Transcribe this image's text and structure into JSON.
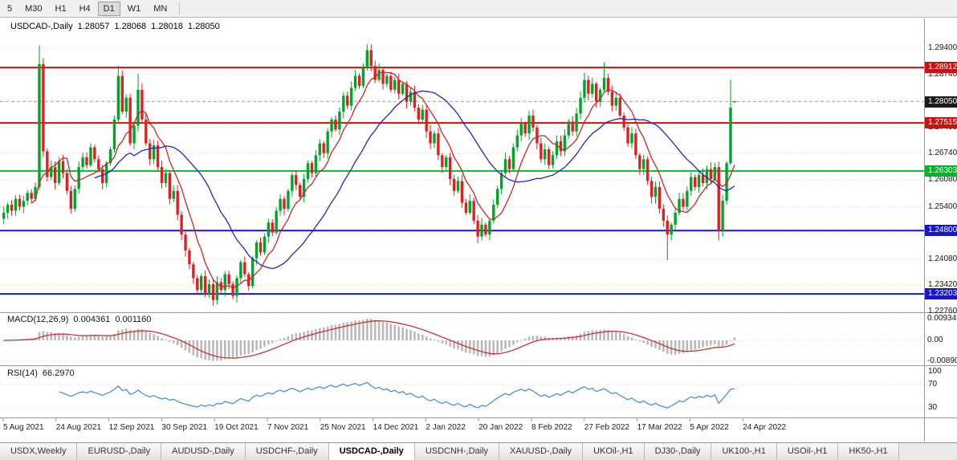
{
  "toolbar": {
    "timeframes": [
      "5",
      "M30",
      "H1",
      "H4",
      "D1",
      "W1",
      "MN"
    ],
    "active_timeframe": "D1"
  },
  "chart_header": {
    "symbol_label": "USDCAD-,Daily",
    "open": "1.28057",
    "high": "1.28068",
    "low": "1.28018",
    "close": "1.28050"
  },
  "price_axis": {
    "labels": [
      {
        "text": "1.29400",
        "price": 1.294
      },
      {
        "text": "1.28740",
        "price": 1.2874
      },
      {
        "text": "1.27400",
        "price": 1.274
      },
      {
        "text": "1.26740",
        "price": 1.2674
      },
      {
        "text": "1.26080",
        "price": 1.2608
      },
      {
        "text": "1.25400",
        "price": 1.254
      },
      {
        "text": "1.24080",
        "price": 1.2408
      },
      {
        "text": "1.23420",
        "price": 1.2342
      },
      {
        "text": "1.22760",
        "price": 1.2276
      }
    ],
    "badges": [
      {
        "text": "1.28912",
        "price": 1.28912,
        "bg": "#cc1111",
        "type": "line-label"
      },
      {
        "text": "1.28050",
        "price": 1.2805,
        "bg": "#1a1a1a",
        "type": "bid"
      },
      {
        "text": "1.27515",
        "price": 1.27515,
        "bg": "#cc1111",
        "type": "line-label"
      },
      {
        "text": "1.26303",
        "price": 1.26303,
        "bg": "#00b42a",
        "type": "line-label"
      },
      {
        "text": "1.24800",
        "price": 1.248,
        "bg": "#1717c8",
        "type": "line-label"
      },
      {
        "text": "1.23203",
        "price": 1.23203,
        "bg": "#1717c8",
        "type": "line-label"
      }
    ]
  },
  "hlines": [
    {
      "price": 1.28912,
      "color": "#cc1111",
      "width": 2
    },
    {
      "price": 1.27515,
      "color": "#cc1111",
      "width": 2
    },
    {
      "price": 1.26303,
      "color": "#00c832",
      "width": 2
    },
    {
      "price": 1.248,
      "color": "#1717c8",
      "width": 2
    },
    {
      "price": 1.23203,
      "color": "#1717c8",
      "width": 2
    }
  ],
  "bid_line": {
    "price": 1.2805,
    "color": "#a8a8a8"
  },
  "grid_prices": [
    1.294,
    1.2874,
    1.2808,
    1.274,
    1.2674,
    1.2608,
    1.254,
    1.2474,
    1.2408,
    1.2342,
    1.2276
  ],
  "indicators": {
    "macd": {
      "name": "MACD(12,26,9)",
      "value_main": "0.004361",
      "value_signal": "0.001160",
      "axis_labels": [
        {
          "text": "0.009345",
          "value": 0.009345
        },
        {
          "text": "0.00",
          "value": 0
        },
        {
          "text": "-0.008905",
          "value": -0.008905
        }
      ]
    },
    "rsi": {
      "name": "RSI(14)",
      "value": "66.2970",
      "axis_labels": [
        {
          "text": "100",
          "value": 100
        },
        {
          "text": "70",
          "value": 70
        },
        {
          "text": "30",
          "value": 30
        }
      ],
      "levels": [
        70,
        30
      ]
    }
  },
  "date_axis": [
    "5 Aug 2021",
    "24 Aug 2021",
    "12 Sep 2021",
    "30 Sep 2021",
    "19 Oct 2021",
    "7 Nov 2021",
    "25 Nov 2021",
    "14 Dec 2021",
    "2 Jan 2022",
    "20 Jan 2022",
    "8 Feb 2022",
    "27 Feb 2022",
    "17 Mar 2022",
    "5 Apr 2022",
    "24 Apr 2022"
  ],
  "tabs": {
    "items": [
      "USDX,Weekly",
      "EURUSD-,Daily",
      "AUDUSD-,Daily",
      "USDCHF-,Daily",
      "USDCAD-,Daily",
      "USDCNH-,Daily",
      "XAUUSD-,Daily",
      "UKOil-,H1",
      "DJ30-,Daily",
      "UK100-,H1",
      "USOil-,H1",
      "HK50-,H1"
    ],
    "active": "USDCAD-,Daily"
  },
  "chart_data": {
    "type": "candlestick",
    "title": "USDCAD-,Daily",
    "timeframe": "Daily",
    "ylim": [
      1.2274,
      1.301
    ],
    "closes": [
      1.2525,
      1.2545,
      1.253,
      1.256,
      1.254,
      1.2555,
      1.2575,
      1.256,
      1.259,
      1.29,
      1.268,
      1.2615,
      1.264,
      1.26,
      1.2655,
      1.2625,
      1.258,
      1.2535,
      1.2585,
      1.264,
      1.2665,
      1.2645,
      1.269,
      1.266,
      1.2635,
      1.26,
      1.265,
      1.2685,
      1.276,
      1.287,
      1.278,
      1.2815,
      1.27,
      1.2745,
      1.2835,
      1.276,
      1.27,
      1.266,
      1.2695,
      1.264,
      1.26,
      1.2625,
      1.256,
      1.258,
      1.252,
      1.247,
      1.243,
      1.2395,
      1.236,
      1.233,
      1.2365,
      1.232,
      1.2345,
      1.2305,
      1.235,
      1.233,
      1.237,
      1.2345,
      1.2315,
      1.236,
      1.24,
      1.237,
      1.234,
      1.241,
      1.245,
      1.2425,
      1.2465,
      1.25,
      1.2475,
      1.253,
      1.256,
      1.2535,
      1.258,
      1.262,
      1.2595,
      1.2565,
      1.261,
      1.265,
      1.2625,
      1.267,
      1.27,
      1.2675,
      1.273,
      1.276,
      1.2735,
      1.278,
      1.282,
      1.2795,
      1.284,
      1.287,
      1.2845,
      1.289,
      1.2935,
      1.2895,
      1.286,
      1.2885,
      1.285,
      1.287,
      1.2835,
      1.286,
      1.2825,
      1.285,
      1.2805,
      1.283,
      1.279,
      1.276,
      1.2785,
      1.273,
      1.27,
      1.2725,
      1.267,
      1.264,
      1.2665,
      1.261,
      1.258,
      1.2605,
      1.255,
      1.2525,
      1.2555,
      1.2505,
      1.2465,
      1.2495,
      1.247,
      1.2505,
      1.2545,
      1.2585,
      1.2625,
      1.266,
      1.2635,
      1.269,
      1.272,
      1.275,
      1.2725,
      1.277,
      1.274,
      1.27,
      1.266,
      1.2685,
      1.2645,
      1.267,
      1.2705,
      1.268,
      1.272,
      1.2755,
      1.273,
      1.2775,
      1.2815,
      1.286,
      1.2825,
      1.285,
      1.2805,
      1.2835,
      1.2865,
      1.283,
      1.2795,
      1.2815,
      1.277,
      1.274,
      1.27,
      1.2725,
      1.267,
      1.2635,
      1.266,
      1.2605,
      1.2565,
      1.259,
      1.2535,
      1.2505,
      1.247,
      1.2495,
      1.2525,
      1.256,
      1.254,
      1.258,
      1.2615,
      1.259,
      1.262,
      1.26,
      1.2635,
      1.261,
      1.264,
      1.248,
      1.2555,
      1.265,
      1.279,
      1.2805
    ],
    "wick_overrides": {
      "9": {
        "h": 1.2947
      },
      "29": {
        "h": 1.2896
      },
      "34": {
        "h": 1.2875
      },
      "53": {
        "l": 1.229
      },
      "92": {
        "h": 1.295
      },
      "120": {
        "l": 1.2448
      },
      "147": {
        "h": 1.2878
      },
      "152": {
        "h": 1.2905
      },
      "168": {
        "l": 1.2405
      },
      "181": {
        "l": 1.2455
      },
      "184": {
        "h": 1.286
      },
      "185": {
        "o": 1.28057,
        "h": 1.28068,
        "l": 1.28018
      }
    },
    "moving_averages": [
      {
        "name": "fast",
        "period": 8,
        "color": "#c82828"
      },
      {
        "name": "slow",
        "period": 24,
        "color": "#2626bb"
      }
    ],
    "colors": {
      "up": "#00a42a",
      "down": "#e02020",
      "grid": "#d9d9d9",
      "separator": "#9a9a9a",
      "macd_hist": "#b9b9b9",
      "macd_signal": "#c82828",
      "rsi_line": "#3c8ccd"
    }
  }
}
